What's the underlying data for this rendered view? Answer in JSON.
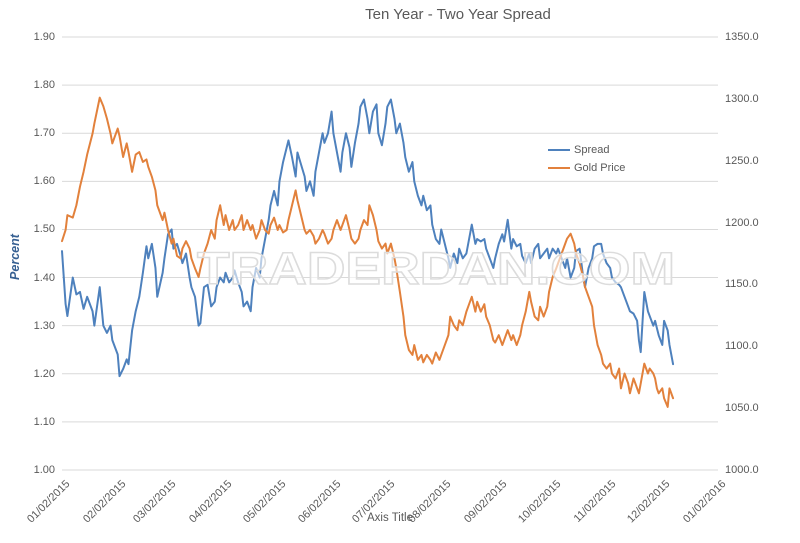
{
  "chart_data": {
    "type": "line",
    "title": "Ten Year - Two Year Spread",
    "x_axis_title": "Axis Title",
    "y_axis_title": "Percent",
    "watermark": "TRADERDAN.COM",
    "legend_position": "right-center",
    "grid": "horizontal",
    "colors": {
      "grid": "#d9d9d9",
      "text": "#595959",
      "axis_title_blue": "#376092"
    },
    "y_left": {
      "min": 1.0,
      "max": 1.9,
      "step": 0.1,
      "tick_labels": [
        "1.00",
        "1.10",
        "1.20",
        "1.30",
        "1.40",
        "1.50",
        "1.60",
        "1.70",
        "1.80",
        "1.90"
      ]
    },
    "y_right": {
      "min": 1000.0,
      "max": 1350.0,
      "step": 50.0,
      "tick_labels": [
        "1000.0",
        "1050.0",
        "1100.0",
        "1150.0",
        "1200.0",
        "1250.0",
        "1300.0",
        "1350.0"
      ]
    },
    "x_axis": {
      "units": "days since 01/02/2015",
      "range": [
        0,
        365
      ],
      "tick_days": [
        0,
        31,
        59,
        90,
        120,
        151,
        181,
        212,
        243,
        273,
        304,
        334,
        365
      ],
      "tick_labels": [
        "01/02/2015",
        "02/02/2015",
        "03/02/2015",
        "04/02/2015",
        "05/02/2015",
        "06/02/2015",
        "07/02/2015",
        "08/02/2015",
        "09/02/2015",
        "10/02/2015",
        "11/02/2015",
        "12/02/2015",
        "01/02/2016"
      ]
    },
    "series": [
      {
        "name": "Spread",
        "axis": "left",
        "units": "percent",
        "color": "#4e81bd"
      },
      {
        "name": "Gold Price",
        "axis": "right",
        "units": "USD/oz",
        "color": "#e2813c"
      }
    ],
    "points_format": [
      "day",
      "spread_percent",
      "gold_price_usd"
    ],
    "points": [
      [
        0,
        1.455,
        1185
      ],
      [
        2,
        1.345,
        1194
      ],
      [
        3,
        1.32,
        1206
      ],
      [
        6,
        1.4,
        1204
      ],
      [
        8,
        1.365,
        1214
      ],
      [
        10,
        1.37,
        1229
      ],
      [
        12,
        1.335,
        1241
      ],
      [
        14,
        1.36,
        1255
      ],
      [
        17,
        1.33,
        1272
      ],
      [
        18,
        1.3,
        1280
      ],
      [
        21,
        1.38,
        1301
      ],
      [
        23,
        1.3,
        1294
      ],
      [
        25,
        1.285,
        1284
      ],
      [
        27,
        1.3,
        1272
      ],
      [
        28,
        1.27,
        1264
      ],
      [
        31,
        1.24,
        1276
      ],
      [
        32,
        1.195,
        1270
      ],
      [
        34,
        1.21,
        1253
      ],
      [
        36,
        1.23,
        1264
      ],
      [
        37,
        1.22,
        1257
      ],
      [
        39,
        1.29,
        1241
      ],
      [
        41,
        1.33,
        1255
      ],
      [
        43,
        1.36,
        1257
      ],
      [
        45,
        1.41,
        1249
      ],
      [
        47,
        1.465,
        1251
      ],
      [
        48,
        1.44,
        1245
      ],
      [
        50,
        1.47,
        1237
      ],
      [
        52,
        1.42,
        1226
      ],
      [
        53,
        1.36,
        1214
      ],
      [
        56,
        1.41,
        1202
      ],
      [
        57,
        1.44,
        1208
      ],
      [
        59,
        1.49,
        1194
      ],
      [
        61,
        1.5,
        1183
      ],
      [
        62,
        1.46,
        1187
      ],
      [
        64,
        1.47,
        1173
      ],
      [
        66,
        1.445,
        1171
      ],
      [
        67,
        1.43,
        1179
      ],
      [
        69,
        1.45,
        1185
      ],
      [
        71,
        1.4,
        1179
      ],
      [
        72,
        1.38,
        1171
      ],
      [
        74,
        1.36,
        1163
      ],
      [
        76,
        1.3,
        1156
      ],
      [
        77,
        1.305,
        1163
      ],
      [
        79,
        1.38,
        1175
      ],
      [
        81,
        1.385,
        1183
      ],
      [
        83,
        1.34,
        1194
      ],
      [
        85,
        1.35,
        1187
      ],
      [
        86,
        1.38,
        1202
      ],
      [
        88,
        1.4,
        1214
      ],
      [
        90,
        1.39,
        1198
      ],
      [
        91,
        1.41,
        1206
      ],
      [
        93,
        1.39,
        1194
      ],
      [
        95,
        1.4,
        1202
      ],
      [
        96,
        1.415,
        1194
      ],
      [
        98,
        1.39,
        1198
      ],
      [
        100,
        1.37,
        1206
      ],
      [
        101,
        1.34,
        1194
      ],
      [
        103,
        1.35,
        1202
      ],
      [
        105,
        1.33,
        1194
      ],
      [
        106,
        1.38,
        1198
      ],
      [
        108,
        1.42,
        1187
      ],
      [
        110,
        1.4,
        1194
      ],
      [
        111,
        1.44,
        1202
      ],
      [
        113,
        1.48,
        1194
      ],
      [
        115,
        1.52,
        1191
      ],
      [
        116,
        1.55,
        1198
      ],
      [
        118,
        1.58,
        1204
      ],
      [
        120,
        1.55,
        1194
      ],
      [
        121,
        1.6,
        1198
      ],
      [
        123,
        1.64,
        1192
      ],
      [
        125,
        1.67,
        1194
      ],
      [
        126,
        1.685,
        1202
      ],
      [
        128,
        1.65,
        1214
      ],
      [
        130,
        1.61,
        1226
      ],
      [
        131,
        1.66,
        1218
      ],
      [
        133,
        1.635,
        1206
      ],
      [
        135,
        1.61,
        1194
      ],
      [
        136,
        1.58,
        1191
      ],
      [
        138,
        1.6,
        1194
      ],
      [
        140,
        1.57,
        1189
      ],
      [
        141,
        1.62,
        1183
      ],
      [
        143,
        1.66,
        1187
      ],
      [
        145,
        1.7,
        1194
      ],
      [
        146,
        1.68,
        1191
      ],
      [
        148,
        1.7,
        1183
      ],
      [
        150,
        1.745,
        1187
      ],
      [
        151,
        1.7,
        1194
      ],
      [
        153,
        1.66,
        1202
      ],
      [
        155,
        1.62,
        1194
      ],
      [
        156,
        1.66,
        1198
      ],
      [
        158,
        1.7,
        1206
      ],
      [
        160,
        1.67,
        1194
      ],
      [
        161,
        1.63,
        1187
      ],
      [
        163,
        1.68,
        1183
      ],
      [
        165,
        1.72,
        1187
      ],
      [
        166,
        1.755,
        1194
      ],
      [
        168,
        1.77,
        1202
      ],
      [
        170,
        1.73,
        1198
      ],
      [
        171,
        1.7,
        1214
      ],
      [
        173,
        1.745,
        1206
      ],
      [
        175,
        1.76,
        1194
      ],
      [
        176,
        1.7,
        1185
      ],
      [
        178,
        1.675,
        1179
      ],
      [
        180,
        1.72,
        1183
      ],
      [
        181,
        1.755,
        1175
      ],
      [
        183,
        1.77,
        1183
      ],
      [
        185,
        1.73,
        1171
      ],
      [
        186,
        1.7,
        1163
      ],
      [
        188,
        1.72,
        1144
      ],
      [
        190,
        1.68,
        1124
      ],
      [
        191,
        1.65,
        1109
      ],
      [
        193,
        1.62,
        1097
      ],
      [
        195,
        1.64,
        1093
      ],
      [
        196,
        1.6,
        1101
      ],
      [
        198,
        1.57,
        1089
      ],
      [
        200,
        1.55,
        1093
      ],
      [
        201,
        1.57,
        1087
      ],
      [
        203,
        1.54,
        1093
      ],
      [
        205,
        1.55,
        1089
      ],
      [
        206,
        1.51,
        1086
      ],
      [
        208,
        1.48,
        1095
      ],
      [
        210,
        1.47,
        1089
      ],
      [
        211,
        1.5,
        1093
      ],
      [
        213,
        1.47,
        1101
      ],
      [
        215,
        1.44,
        1109
      ],
      [
        216,
        1.42,
        1124
      ],
      [
        218,
        1.45,
        1117
      ],
      [
        220,
        1.43,
        1113
      ],
      [
        221,
        1.46,
        1121
      ],
      [
        223,
        1.44,
        1117
      ],
      [
        225,
        1.45,
        1128
      ],
      [
        226,
        1.47,
        1132
      ],
      [
        228,
        1.51,
        1140
      ],
      [
        230,
        1.47,
        1128
      ],
      [
        231,
        1.48,
        1136
      ],
      [
        233,
        1.475,
        1128
      ],
      [
        235,
        1.48,
        1134
      ],
      [
        236,
        1.46,
        1124
      ],
      [
        238,
        1.44,
        1117
      ],
      [
        240,
        1.42,
        1105
      ],
      [
        241,
        1.44,
        1103
      ],
      [
        243,
        1.47,
        1109
      ],
      [
        245,
        1.49,
        1101
      ],
      [
        246,
        1.475,
        1105
      ],
      [
        248,
        1.52,
        1113
      ],
      [
        250,
        1.46,
        1105
      ],
      [
        251,
        1.48,
        1109
      ],
      [
        253,
        1.465,
        1101
      ],
      [
        255,
        1.47,
        1109
      ],
      [
        256,
        1.445,
        1117
      ],
      [
        258,
        1.43,
        1128
      ],
      [
        260,
        1.45,
        1144
      ],
      [
        261,
        1.43,
        1136
      ],
      [
        263,
        1.46,
        1124
      ],
      [
        265,
        1.47,
        1121
      ],
      [
        266,
        1.44,
        1132
      ],
      [
        268,
        1.45,
        1124
      ],
      [
        270,
        1.46,
        1132
      ],
      [
        271,
        1.44,
        1144
      ],
      [
        273,
        1.46,
        1156
      ],
      [
        275,
        1.45,
        1163
      ],
      [
        276,
        1.46,
        1167
      ],
      [
        278,
        1.44,
        1175
      ],
      [
        280,
        1.42,
        1183
      ],
      [
        281,
        1.44,
        1187
      ],
      [
        283,
        1.4,
        1191
      ],
      [
        285,
        1.42,
        1183
      ],
      [
        286,
        1.455,
        1175
      ],
      [
        288,
        1.46,
        1167
      ],
      [
        290,
        1.4,
        1156
      ],
      [
        291,
        1.38,
        1148
      ],
      [
        293,
        1.42,
        1140
      ],
      [
        295,
        1.44,
        1132
      ],
      [
        296,
        1.465,
        1117
      ],
      [
        298,
        1.47,
        1101
      ],
      [
        300,
        1.47,
        1093
      ],
      [
        301,
        1.45,
        1086
      ],
      [
        303,
        1.43,
        1082
      ],
      [
        305,
        1.42,
        1086
      ],
      [
        306,
        1.4,
        1078
      ],
      [
        308,
        1.39,
        1074
      ],
      [
        310,
        1.385,
        1082
      ],
      [
        311,
        1.38,
        1066
      ],
      [
        313,
        1.36,
        1078
      ],
      [
        315,
        1.34,
        1070
      ],
      [
        316,
        1.33,
        1062
      ],
      [
        318,
        1.325,
        1074
      ],
      [
        320,
        1.31,
        1066
      ],
      [
        321,
        1.27,
        1062
      ],
      [
        322,
        1.245,
        1070
      ],
      [
        324,
        1.37,
        1086
      ],
      [
        326,
        1.33,
        1078
      ],
      [
        327,
        1.32,
        1082
      ],
      [
        329,
        1.3,
        1078
      ],
      [
        330,
        1.31,
        1074
      ],
      [
        331,
        1.295,
        1066
      ],
      [
        332,
        1.28,
        1062
      ],
      [
        334,
        1.26,
        1066
      ],
      [
        335,
        1.31,
        1058
      ],
      [
        337,
        1.29,
        1051
      ],
      [
        338,
        1.26,
        1066
      ],
      [
        340,
        1.22,
        1058
      ]
    ]
  }
}
